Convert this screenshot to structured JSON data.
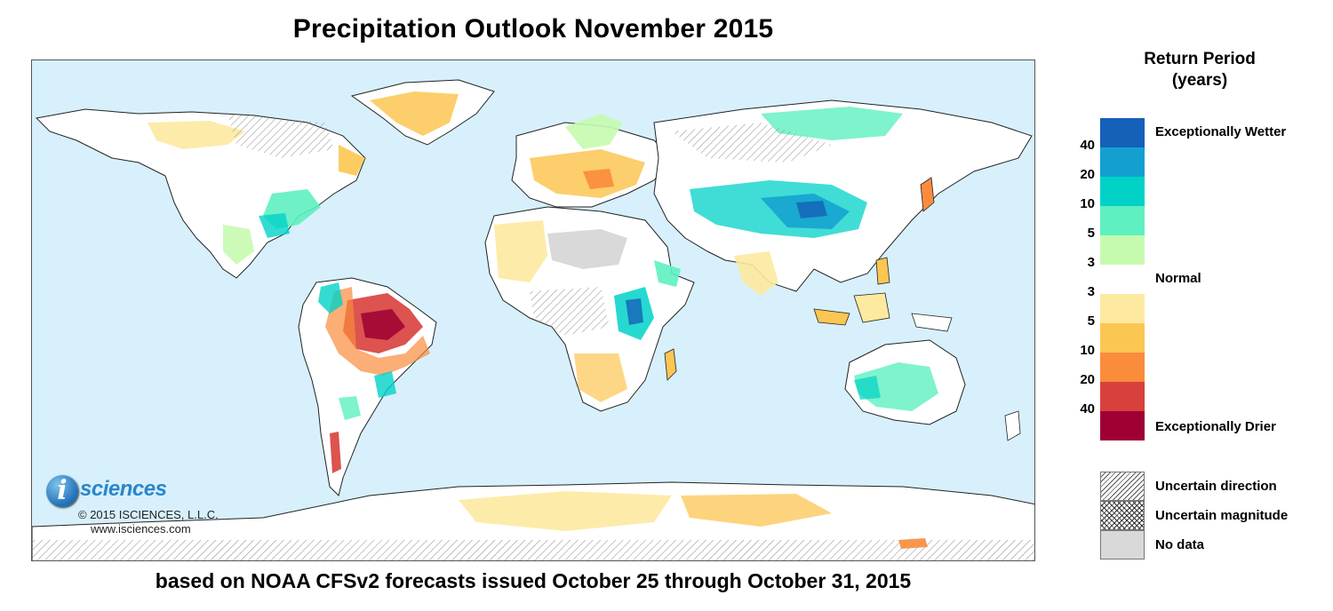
{
  "title": "Precipitation Outlook November 2015",
  "subtitle": "based on NOAA CFSv2 forecasts issued October 25 through October 31, 2015",
  "logo": {
    "letter": "i",
    "word": "sciences",
    "copyright": "© 2015 ISCIENCES, L.L.C.",
    "website": "www.isciences.com"
  },
  "legend": {
    "title_line1": "Return Period",
    "title_line2": "(years)",
    "colors": [
      "#1560b8",
      "#13a0d0",
      "#00d2c8",
      "#5ef0c0",
      "#c6fbaf",
      "#ffffff",
      "#fde9a0",
      "#fcc652",
      "#fa8c3c",
      "#d8403c",
      "#9e0033"
    ],
    "ticks": [
      "40",
      "20",
      "10",
      "5",
      "3",
      "3",
      "5",
      "10",
      "20",
      "40"
    ],
    "label_wet": "Exceptionally Wetter",
    "label_normal": "Normal",
    "label_dry": "Exceptionally Drier",
    "uncertain_direction": "Uncertain direction",
    "uncertain_magnitude": "Uncertain magnitude",
    "no_data": "No data"
  },
  "map": {
    "ocean_color": "#d7f0fb",
    "land_color": "#ffffff",
    "outline_color": "#222222"
  }
}
